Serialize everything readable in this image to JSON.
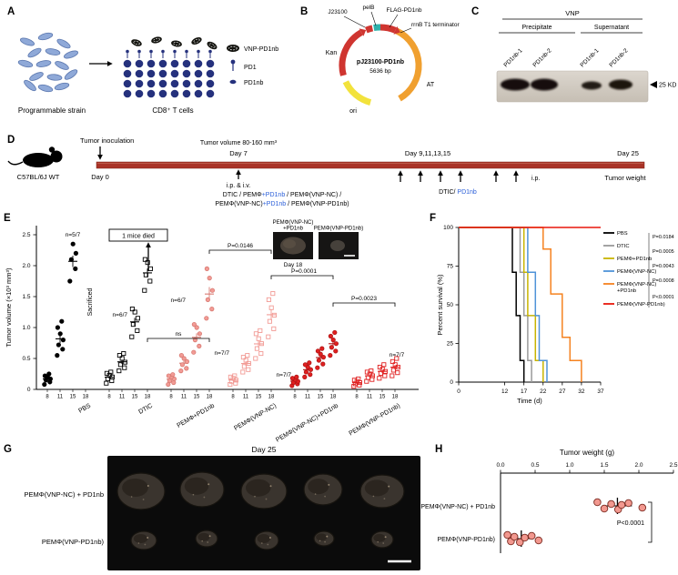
{
  "colors": {
    "timeline": "#a93226",
    "accent_blue": "#2b5fd9",
    "pink": "#f29b95",
    "red": "#e02020"
  },
  "panelA": {
    "label": "A",
    "strain_label": "Programmable strain",
    "cells_label": "CD8⁺ T cells",
    "legend": {
      "vnp": "VNP-PD1nb",
      "pd1": "PD1",
      "pd1nb": "PD1nb"
    }
  },
  "panelB": {
    "label": "B",
    "promoter": "J23100",
    "pelb": "pelB",
    "flag": "FLAG-PD1nb",
    "terminator": "rrnB T1 terminator",
    "kan": "Kan",
    "ori": "ori",
    "at": "AT",
    "plasmid_name": "pJ23100-PD1nb",
    "plasmid_size": "5636 bp"
  },
  "panelC": {
    "label": "C",
    "header": "VNP",
    "col1": "Precipitate",
    "col2": "Supernatant",
    "lanes": [
      "PD1nb-1",
      "PD1nb-2",
      "PD1nb-1",
      "PD1nb-2"
    ],
    "marker": "25 KD"
  },
  "panelD": {
    "label": "D",
    "strain": "C57BL/6J WT",
    "inoculation": "Tumor inoculation",
    "day0": "Day 0",
    "volume_note": "Tumor volume 80-160 mm³",
    "day7": "Day 7",
    "route1": "i.p. & i.v.",
    "treat_line1": [
      {
        "t": "DTIC / PEMΦ",
        "b": false
      },
      {
        "t": "+PD1nb",
        "b": true
      },
      {
        "t": " / PEMΦ(VNP-NC) /",
        "b": false
      }
    ],
    "treat_line2": [
      {
        "t": "PEMΦ(VNP-NC)",
        "b": false
      },
      {
        "t": "+PD1nb",
        "b": true
      },
      {
        "t": " / PEMΦ(VNP-PD1nb)",
        "b": false
      }
    ],
    "mid_days": "Day 9,11,13,15",
    "route2": "i.p.",
    "boost": [
      {
        "t": "DTIC/ ",
        "b": false
      },
      {
        "t": "PD1nb",
        "b": true
      }
    ],
    "day25": "Day 25",
    "endpoint": "Tumor weight"
  },
  "panelE": {
    "label": "E",
    "annotations": {
      "sacrificed": "Sacrificed",
      "mice_died": "1 mice died",
      "ns": "ns",
      "p_2_3": "P=0.0146",
      "p_3_4": "P=0.0001",
      "p_4_5": "P=0.0023"
    },
    "inset": {
      "left_label_line1": "PEMΦ(VNP-NC)",
      "left_label_line2": "+PD1nb",
      "right_label": "PEMΦ(VNP-PD1nb)",
      "day": "Day 18"
    }
  },
  "panelF": {
    "label": "F"
  },
  "panelG": {
    "label": "G",
    "title": "Day 25",
    "row1": "PEMΦ(VNP-NC) + PD1nb",
    "row2": "PEMΦ(VNP-PD1nb)"
  },
  "panelH": {
    "label": "H"
  },
  "chart_data": [
    {
      "id": "tumor-volume-scatter",
      "type": "scatter",
      "ylabel": "Tumor volume (×10³ mm³)",
      "ylim": [
        0,
        2.5
      ],
      "yticks": [
        0,
        0.5,
        1.0,
        1.5,
        2.0,
        2.5
      ],
      "day_ticks": [
        "8",
        "11",
        "15",
        "18"
      ],
      "groups": [
        {
          "label": "PBS",
          "marker": "circle",
          "fill": "#000000",
          "stroke": "#000000",
          "n_label": "n=5/7",
          "days": [
            8,
            11,
            15,
            18
          ],
          "values": [
            [
              0.08,
              0.12,
              0.15,
              0.17,
              0.2,
              0.22,
              0.25
            ],
            [
              0.55,
              0.65,
              0.72,
              0.8,
              0.9,
              1.0,
              1.1
            ],
            [
              1.75,
              1.95,
              2.1,
              2.2,
              2.35
            ],
            []
          ]
        },
        {
          "label": "DTIC",
          "marker": "square",
          "fill": "none",
          "stroke": "#000000",
          "n_label": "n=6/7",
          "days": [
            8,
            11,
            15,
            18
          ],
          "values": [
            [
              0.1,
              0.14,
              0.17,
              0.2,
              0.23,
              0.26,
              0.28
            ],
            [
              0.3,
              0.35,
              0.4,
              0.44,
              0.5,
              0.55,
              0.58
            ],
            [
              0.85,
              0.95,
              1.05,
              1.15,
              1.25,
              1.3
            ],
            [
              1.6,
              1.75,
              1.85,
              1.95,
              2.05,
              2.1
            ]
          ]
        },
        {
          "label": "PEMΦ+PD1nb",
          "marker": "circle",
          "fill": "#f29b95",
          "stroke": "#d87a72",
          "n_label": "n=6/7",
          "days": [
            8,
            11,
            15,
            18
          ],
          "values": [
            [
              0.08,
              0.11,
              0.14,
              0.17,
              0.2,
              0.22,
              0.24
            ],
            [
              0.3,
              0.34,
              0.4,
              0.45,
              0.5,
              0.55
            ],
            [
              0.6,
              0.7,
              0.8,
              0.9,
              1.0,
              1.05
            ],
            [
              1.15,
              1.3,
              1.45,
              1.6,
              1.8,
              1.95
            ]
          ]
        },
        {
          "label": "PEMΦ(VNP-NC)",
          "marker": "square",
          "fill": "none",
          "stroke": "#f29b95",
          "n_label": "n=7/7",
          "days": [
            8,
            11,
            15,
            18
          ],
          "values": [
            [
              0.08,
              0.1,
              0.13,
              0.15,
              0.18,
              0.2,
              0.22
            ],
            [
              0.28,
              0.32,
              0.37,
              0.42,
              0.47,
              0.52,
              0.55
            ],
            [
              0.5,
              0.58,
              0.66,
              0.74,
              0.82,
              0.9,
              0.95
            ],
            [
              0.85,
              0.98,
              1.1,
              1.2,
              1.32,
              1.45,
              1.55
            ]
          ]
        },
        {
          "label": "PEMΦ(VNP-NC)+PD1nb",
          "marker": "circle",
          "fill": "#e02020",
          "stroke": "#b01515",
          "n_label": "n=7/7",
          "days": [
            8,
            11,
            15,
            18
          ],
          "values": [
            [
              0.06,
              0.09,
              0.11,
              0.13,
              0.16,
              0.18,
              0.2
            ],
            [
              0.2,
              0.24,
              0.28,
              0.32,
              0.36,
              0.4,
              0.43
            ],
            [
              0.35,
              0.41,
              0.47,
              0.52,
              0.57,
              0.62,
              0.66
            ],
            [
              0.55,
              0.62,
              0.68,
              0.74,
              0.8,
              0.86,
              0.92
            ]
          ]
        },
        {
          "label": "PEMΦ(VNP-PD1nb)",
          "marker": "square",
          "fill": "none",
          "stroke": "#e02020",
          "n_label": "n=7/7",
          "days": [
            8,
            11,
            15,
            18
          ],
          "values": [
            [
              0.05,
              0.07,
              0.09,
              0.11,
              0.13,
              0.15,
              0.17
            ],
            [
              0.13,
              0.16,
              0.19,
              0.22,
              0.25,
              0.28,
              0.3
            ],
            [
              0.18,
              0.22,
              0.26,
              0.29,
              0.33,
              0.36,
              0.4
            ],
            [
              0.22,
              0.27,
              0.31,
              0.36,
              0.4,
              0.45,
              0.5
            ]
          ]
        }
      ]
    },
    {
      "id": "survival-curve",
      "type": "line",
      "ylabel": "Percent survival (%)",
      "xlabel": "Time (d)",
      "xlim": [
        0,
        37
      ],
      "ylim": [
        0,
        100
      ],
      "xticks": [
        0,
        12,
        17,
        22,
        27,
        32,
        37
      ],
      "yticks": [
        0,
        25,
        50,
        75,
        100
      ],
      "series": [
        {
          "name": "PBS",
          "color": "#000000",
          "points": [
            [
              0,
              100
            ],
            [
              14,
              100
            ],
            [
              14,
              71
            ],
            [
              15,
              71
            ],
            [
              15,
              43
            ],
            [
              16,
              43
            ],
            [
              16,
              14
            ],
            [
              17,
              14
            ],
            [
              17,
              0
            ]
          ]
        },
        {
          "name": "DTIC",
          "color": "#9a9a9a",
          "points": [
            [
              0,
              100
            ],
            [
              16,
              100
            ],
            [
              16,
              71
            ],
            [
              17,
              71
            ],
            [
              17,
              43
            ],
            [
              18,
              43
            ],
            [
              18,
              14
            ],
            [
              19,
              14
            ],
            [
              19,
              0
            ]
          ]
        },
        {
          "name": "PEMΦ+PD1nb",
          "color": "#c8b400",
          "points": [
            [
              0,
              100
            ],
            [
              17,
              100
            ],
            [
              17,
              71
            ],
            [
              18,
              71
            ],
            [
              18,
              43
            ],
            [
              20,
              43
            ],
            [
              20,
              14
            ],
            [
              22,
              14
            ],
            [
              22,
              0
            ]
          ]
        },
        {
          "name": "PEMΦ(VNP-NC)",
          "color": "#4f93d8",
          "points": [
            [
              0,
              100
            ],
            [
              18,
              100
            ],
            [
              18,
              71
            ],
            [
              20,
              71
            ],
            [
              20,
              43
            ],
            [
              21,
              43
            ],
            [
              21,
              14
            ],
            [
              23,
              14
            ],
            [
              23,
              0
            ]
          ]
        },
        {
          "name": "PEMΦ(VNP-NC)+PD1nb",
          "color": "#f5821f",
          "name_line1": "PEMΦ(VNP-NC)",
          "name_line2": "+PD1nb",
          "points": [
            [
              0,
              100
            ],
            [
              22,
              100
            ],
            [
              22,
              86
            ],
            [
              24,
              86
            ],
            [
              24,
              57
            ],
            [
              27,
              57
            ],
            [
              27,
              29
            ],
            [
              29,
              29
            ],
            [
              29,
              14
            ],
            [
              32,
              14
            ],
            [
              32,
              0
            ]
          ]
        },
        {
          "name": "PEMΦ(VNP-PD1nb)",
          "color": "#e8160c",
          "points": [
            [
              0,
              100
            ],
            [
              37,
              100
            ]
          ]
        }
      ],
      "pvalues": [
        "P=0.0184",
        "P=0.0005",
        "P=0.0043",
        "P=0.0008",
        "P<0.0001"
      ]
    },
    {
      "id": "tumor-weight-scatter",
      "type": "scatter",
      "title": "Tumor weight (g)",
      "xlim": [
        0,
        2.5
      ],
      "xtick_labels": [
        "0.0",
        "0.5",
        "1.0",
        "1.5",
        "2.0",
        "2.5"
      ],
      "dot_fill": "#f2988f",
      "dot_stroke": "#7a2a20",
      "groups": [
        {
          "label": "PEMΦ(VNP-NC) + PD1nb",
          "values": [
            1.4,
            1.5,
            1.6,
            1.7,
            1.75,
            1.85,
            2.05
          ],
          "mean": 1.69,
          "sd": 0.21
        },
        {
          "label": "PEMΦ(VNP-PD1nb)",
          "values": [
            0.1,
            0.15,
            0.2,
            0.28,
            0.35,
            0.45,
            0.55
          ],
          "mean": 0.3,
          "sd": 0.16
        }
      ],
      "pvalue": "P<0.0001"
    }
  ]
}
